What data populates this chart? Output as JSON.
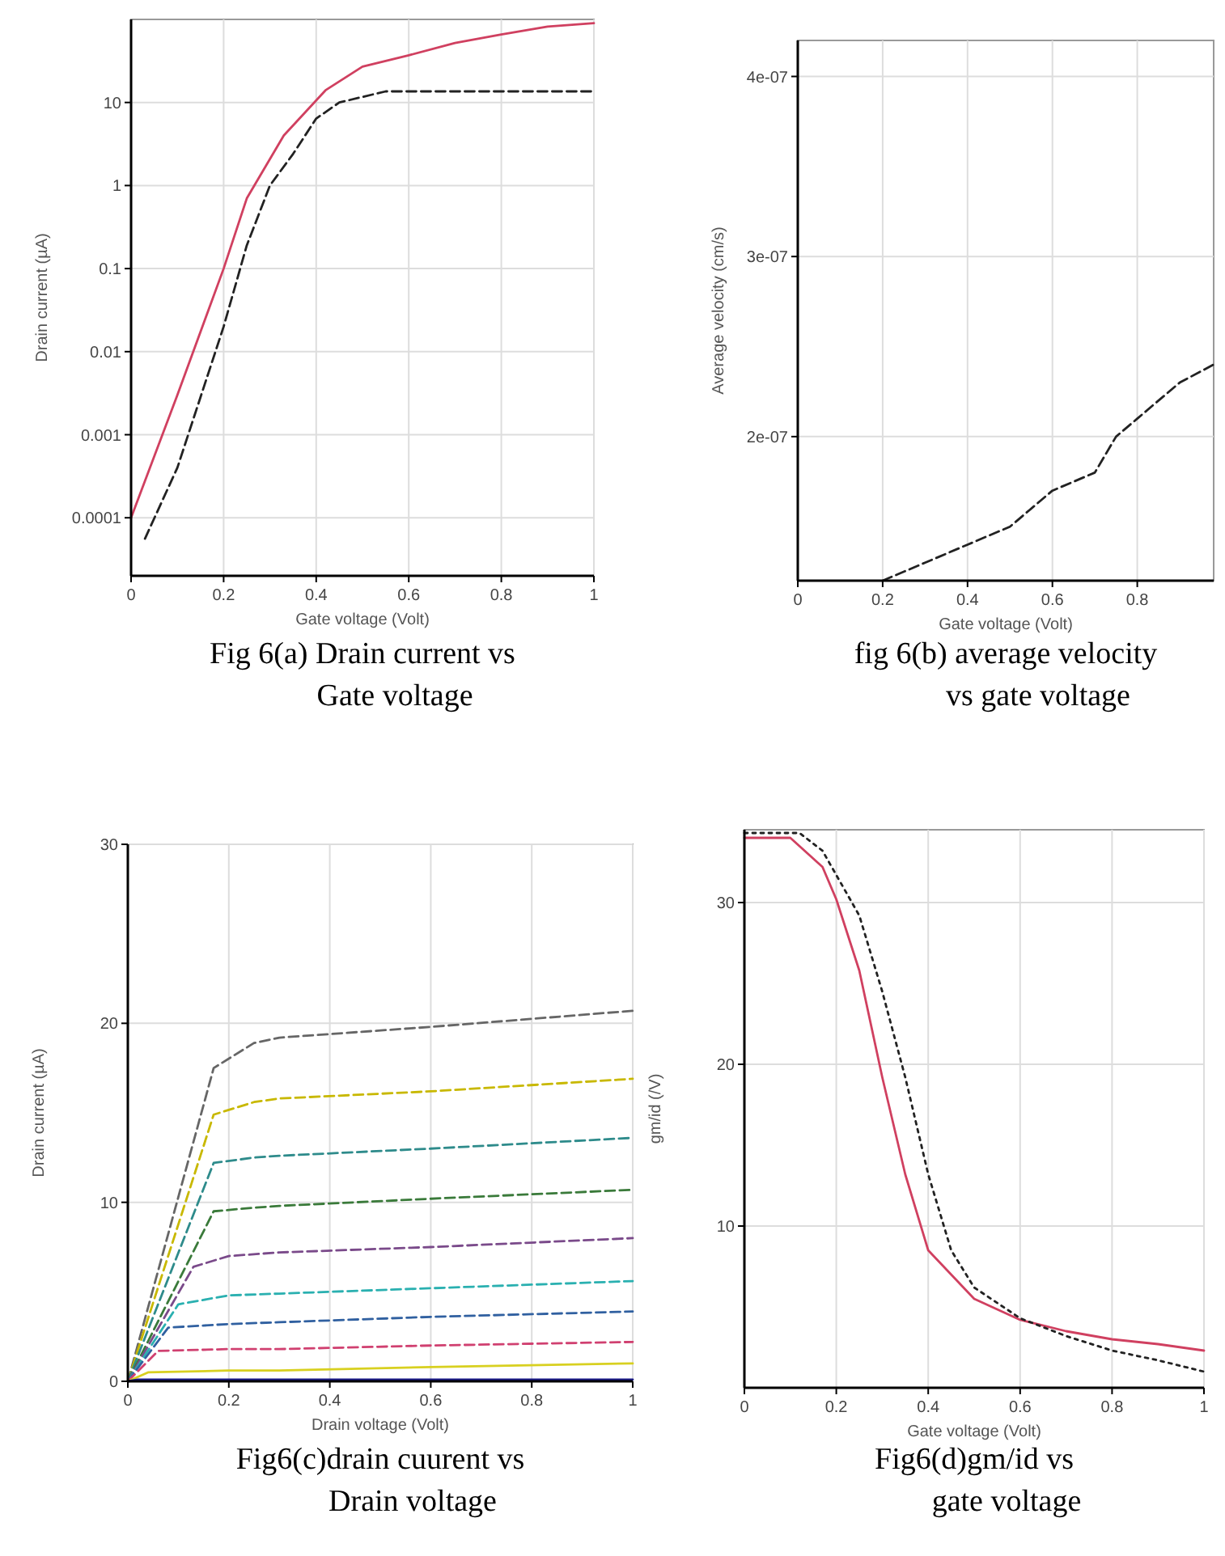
{
  "chart_data": [
    {
      "type": "line",
      "title": "Fig 6(a) Drain current vs Gate voltage",
      "xlabel": "Gate voltage (Volt)",
      "ylabel": "Drain current (µA)",
      "log": true,
      "grid": true,
      "xlim": [
        0,
        1
      ],
      "ylim": [
        2e-05,
        100
      ],
      "xticks": [
        0,
        0.2,
        0.4,
        0.6,
        0.8,
        1
      ],
      "yticks": [
        0.0001,
        0.001,
        0.01,
        0.1,
        1,
        10
      ],
      "series": [
        {
          "color": "#d04060",
          "line_style": "solid",
          "x": [
            0,
            0.1,
            0.2,
            0.25,
            0.33,
            0.42,
            0.5,
            0.6,
            0.7,
            0.8,
            0.9,
            1
          ],
          "values": [
            0.0001,
            0.003,
            0.1,
            0.7,
            4,
            14,
            27,
            37,
            52,
            66,
            82,
            90
          ]
        },
        {
          "color": "#222222",
          "line_style": "dashed",
          "x": [
            0.03,
            0.1,
            0.2,
            0.25,
            0.3,
            0.35,
            0.4,
            0.45,
            0.55,
            0.7,
            0.85,
            1
          ],
          "values": [
            5.6e-05,
            0.0004,
            0.02,
            0.19,
            1,
            2.4,
            6.4,
            10,
            13.6,
            13.6,
            13.6,
            13.6
          ]
        }
      ]
    },
    {
      "type": "line",
      "title": "fig 6(b) average velocity vs gate voltage",
      "xlabel": "Gate voltage (Volt)",
      "ylabel": "Average velocity (cm/s)",
      "grid": true,
      "xlim": [
        0,
        0.98
      ],
      "ylim": [
        1.2e-07,
        4.2e-07
      ],
      "xticks": [
        0,
        0.2,
        0.4,
        0.6,
        0.8
      ],
      "yticks": [
        {
          "value": 2e-07,
          "label": "2e-07"
        },
        {
          "value": 3e-07,
          "label": "3e-07"
        },
        {
          "value": 4e-07,
          "label": "4e-07"
        }
      ],
      "series": [
        {
          "color": "#222222",
          "line_style": "dashed",
          "x": [
            0.2,
            0.3,
            0.4,
            0.5,
            0.6,
            0.7,
            0.75,
            0.8,
            0.9,
            0.98
          ],
          "values": [
            1.2e-07,
            1.3e-07,
            1.4e-07,
            1.5e-07,
            1.7e-07,
            1.8e-07,
            2e-07,
            2.1e-07,
            2.3e-07,
            2.4e-07
          ]
        }
      ]
    },
    {
      "type": "line",
      "title": "Fig6(c)drain cuurent vs Drain voltage",
      "xlabel": "Drain voltage (Volt)",
      "ylabel": "Drain current (µA)",
      "grid": true,
      "xlim": [
        0,
        1
      ],
      "ylim": [
        0,
        30
      ],
      "xticks": [
        0,
        0.2,
        0.4,
        0.6,
        0.8,
        1
      ],
      "yticks": [
        0,
        10,
        20,
        30
      ],
      "series": [
        {
          "color": "#666666",
          "line_style": "dashed",
          "x": [
            0,
            0.17,
            0.25,
            0.3,
            0.6,
            1
          ],
          "values": [
            0,
            17.5,
            18.9,
            19.2,
            19.8,
            20.7
          ]
        },
        {
          "color": "#c8b800",
          "line_style": "dashed",
          "x": [
            0,
            0.17,
            0.25,
            0.3,
            0.6,
            1
          ],
          "values": [
            0,
            14.9,
            15.6,
            15.8,
            16.2,
            16.9
          ]
        },
        {
          "color": "#2e8b8b",
          "line_style": "dashed",
          "x": [
            0,
            0.17,
            0.25,
            0.3,
            0.6,
            1
          ],
          "values": [
            0,
            12.2,
            12.5,
            12.6,
            13,
            13.6
          ]
        },
        {
          "color": "#3a7a3a",
          "line_style": "dashed",
          "x": [
            0,
            0.17,
            0.25,
            0.3,
            0.6,
            1
          ],
          "values": [
            0,
            9.5,
            9.7,
            9.8,
            10.2,
            10.7
          ]
        },
        {
          "color": "#7a4a8a",
          "line_style": "dashed",
          "x": [
            0,
            0.13,
            0.2,
            0.3,
            0.6,
            1
          ],
          "values": [
            0,
            6.4,
            7,
            7.2,
            7.5,
            8
          ]
        },
        {
          "color": "#2ab0b0",
          "line_style": "dashed",
          "x": [
            0,
            0.1,
            0.2,
            0.3,
            0.6,
            1
          ],
          "values": [
            0,
            4.3,
            4.8,
            4.9,
            5.2,
            5.6
          ]
        },
        {
          "color": "#3060a0",
          "line_style": "dashed",
          "x": [
            0,
            0.08,
            0.2,
            0.3,
            0.6,
            1
          ],
          "values": [
            0,
            3,
            3.2,
            3.3,
            3.6,
            3.9
          ]
        },
        {
          "color": "#d04070",
          "line_style": "dashed",
          "x": [
            0,
            0.06,
            0.2,
            0.3,
            0.6,
            1
          ],
          "values": [
            0,
            1.7,
            1.8,
            1.8,
            2,
            2.2
          ]
        },
        {
          "color": "#d8d020",
          "line_style": "solid",
          "x": [
            0,
            0.04,
            0.2,
            0.3,
            0.6,
            1
          ],
          "values": [
            0,
            0.5,
            0.6,
            0.6,
            0.8,
            1
          ]
        },
        {
          "color": "#1a1a8a",
          "line_style": "solid",
          "x": [
            0,
            0.02,
            0.3,
            0.6,
            1
          ],
          "values": [
            0,
            0.1,
            0.1,
            0.1,
            0.1
          ]
        }
      ]
    },
    {
      "type": "line",
      "title": "Fig6(d)gm/id vs gate voltage",
      "xlabel": "Gate voltage (Volt)",
      "ylabel": "gm/id (/V)",
      "grid": true,
      "xlim": [
        0,
        1
      ],
      "ylim": [
        0,
        34.5
      ],
      "xticks": [
        0,
        0.2,
        0.4,
        0.6,
        0.8,
        1
      ],
      "yticks": [
        10,
        20,
        30
      ],
      "series": [
        {
          "color": "#d04060",
          "line_style": "solid",
          "x": [
            0,
            0.1,
            0.17,
            0.2,
            0.25,
            0.3,
            0.35,
            0.4,
            0.5,
            0.6,
            0.7,
            0.8,
            0.9,
            1
          ],
          "values": [
            34,
            34,
            32.2,
            30.2,
            25.8,
            19.2,
            13.2,
            8.5,
            5.5,
            4.2,
            3.5,
            3,
            2.7,
            2.3
          ]
        },
        {
          "color": "#222222",
          "line_style": "dotted",
          "x": [
            0,
            0.12,
            0.17,
            0.25,
            0.3,
            0.35,
            0.4,
            0.45,
            0.5,
            0.6,
            0.7,
            0.8,
            0.9,
            1
          ],
          "values": [
            34.3,
            34.3,
            33.2,
            29.2,
            24.5,
            19.2,
            13.2,
            8.5,
            6.2,
            4.3,
            3.2,
            2.3,
            1.7,
            1
          ]
        }
      ]
    }
  ]
}
